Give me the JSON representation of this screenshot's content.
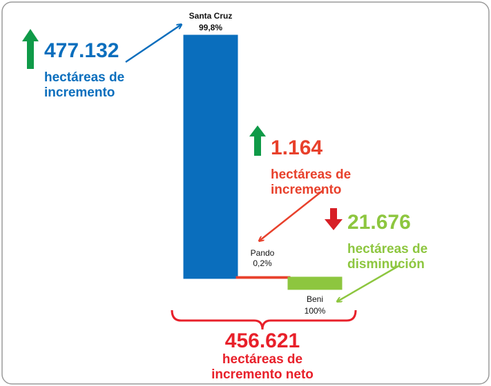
{
  "chart_data": {
    "type": "bar",
    "categories": [
      "Santa Cruz",
      "Pando",
      "Beni"
    ],
    "values": [
      477132,
      1164,
      -21676
    ],
    "value_labels": [
      "477.132",
      "1.164",
      "21.676"
    ],
    "shares": [
      99.8,
      0.2,
      100
    ],
    "share_labels": [
      "99,8%",
      "0,2%",
      "100%"
    ],
    "colors": [
      "#0a6ebd",
      "#e8412c",
      "#8dc63f"
    ],
    "notes": [
      [
        "hectáreas de",
        "incremento"
      ],
      [
        "hectáreas de",
        "incremento"
      ],
      [
        "hectáreas de",
        "disminución"
      ]
    ],
    "total": {
      "value": 456621,
      "label": "456.621",
      "lines": [
        "hectáreas de",
        "incremento neto"
      ],
      "color": "#e8202a"
    }
  }
}
